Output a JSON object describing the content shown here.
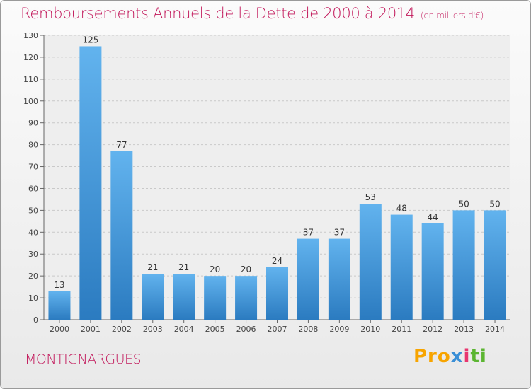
{
  "title": "Remboursements Annuels de la Dette de 2000 à 2014",
  "unit": "(en milliers d'€)",
  "commune": "MONTIGNARGUES",
  "logo": {
    "p1": "Pro",
    "p2": "x",
    "p3": "i",
    "p4": "ti"
  },
  "colors": {
    "title": "#c2185b",
    "bar_top": "#62b3ee",
    "bar_bottom": "#2b7bc0"
  },
  "chart_data": {
    "type": "bar",
    "categories": [
      "2000",
      "2001",
      "2002",
      "2003",
      "2004",
      "2005",
      "2006",
      "2007",
      "2008",
      "2009",
      "2010",
      "2011",
      "2012",
      "2013",
      "2014"
    ],
    "values": [
      13,
      125,
      77,
      21,
      21,
      20,
      20,
      24,
      37,
      37,
      53,
      48,
      44,
      50,
      50
    ],
    "ylim": [
      0,
      130
    ],
    "yticks": [
      0,
      10,
      20,
      30,
      40,
      50,
      60,
      70,
      80,
      90,
      100,
      110,
      120,
      130
    ],
    "grid": true,
    "data_labels": true
  }
}
